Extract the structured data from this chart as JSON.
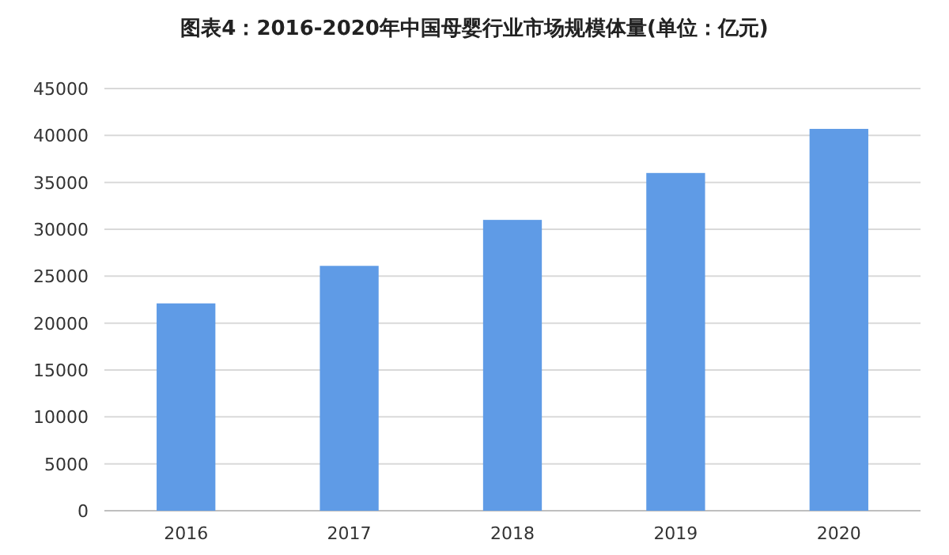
{
  "chart_data": {
    "type": "bar",
    "title": "图表4：2016-2020年中国母婴行业市场规模体量(单位：亿元)",
    "categories": [
      "2016",
      "2017",
      "2018",
      "2019",
      "2020"
    ],
    "values": [
      22100,
      26100,
      31000,
      36000,
      40700
    ],
    "color": "#5f9be6",
    "ylim": [
      0,
      45000
    ],
    "yticks": [
      0,
      5000,
      10000,
      15000,
      20000,
      25000,
      30000,
      35000,
      40000,
      45000
    ],
    "grid": "y",
    "legend": false
  }
}
